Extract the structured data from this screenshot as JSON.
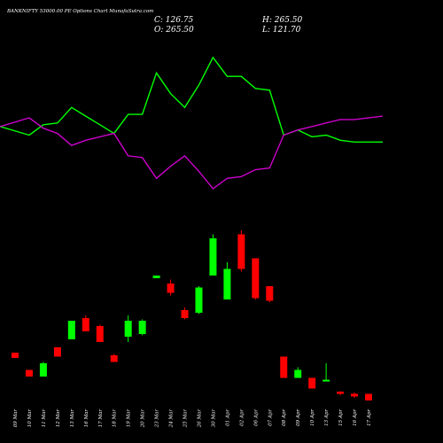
{
  "header": {
    "title": "BANKNIFTY 53000.00 PE Options Chart MunafaSutra.com",
    "close": "C: 126.75",
    "open": "O: 265.50",
    "high": "H: 265.50",
    "low": "L: 121.70"
  },
  "colors": {
    "background": "#000000",
    "up_candle": "#00ff00",
    "down_candle": "#ff0000",
    "green_line": "#00ff00",
    "magenta_line": "#cc00cc",
    "text": "#ffffff"
  },
  "chart_data": {
    "type": "candlestick",
    "dates": [
      "09 Mar",
      "10 Mar",
      "11 Mar",
      "12 Mar",
      "13 Mar",
      "16 Mar",
      "17 Mar",
      "18 Mar",
      "19 Mar",
      "20 Mar",
      "23 Mar",
      "24 Mar",
      "25 Mar",
      "26 Mar",
      "30 Mar",
      "01 Apr",
      "02 Apr",
      "06 Apr",
      "07 Apr",
      "08 Apr",
      "09 Apr",
      "10 Apr",
      "13 Apr",
      "15 Apr",
      "16 Apr",
      "17 Apr"
    ],
    "candles": [
      {
        "open": 2540,
        "high": 2540,
        "low": 2520,
        "close": 2520
      },
      {
        "open": 2475,
        "high": 2475,
        "low": 2450,
        "close": 2450
      },
      {
        "open": 2450,
        "high": 2505,
        "low": 2450,
        "close": 2500
      },
      {
        "open": 2560,
        "high": 2560,
        "low": 2525,
        "close": 2525
      },
      {
        "open": 2590,
        "high": 2660,
        "low": 2590,
        "close": 2660
      },
      {
        "open": 2670,
        "high": 2680,
        "low": 2620,
        "close": 2620
      },
      {
        "open": 2640,
        "high": 2645,
        "low": 2580,
        "close": 2580
      },
      {
        "open": 2530,
        "high": 2535,
        "low": 2505,
        "close": 2505
      },
      {
        "open": 2600,
        "high": 2680,
        "low": 2580,
        "close": 2660
      },
      {
        "open": 2610,
        "high": 2665,
        "low": 2605,
        "close": 2660
      },
      {
        "open": 2820,
        "high": 2830,
        "low": 2820,
        "close": 2830
      },
      {
        "open": 2800,
        "high": 2815,
        "low": 2755,
        "close": 2765
      },
      {
        "open": 2700,
        "high": 2710,
        "low": 2665,
        "close": 2670
      },
      {
        "open": 2690,
        "high": 2790,
        "low": 2685,
        "close": 2785
      },
      {
        "open": 2830,
        "high": 2985,
        "low": 2830,
        "close": 2970
      },
      {
        "open": 2740,
        "high": 2880,
        "low": 2740,
        "close": 2855
      },
      {
        "open": 2985,
        "high": 3000,
        "low": 2845,
        "close": 2855
      },
      {
        "open": 2895,
        "high": 2895,
        "low": 2740,
        "close": 2745
      },
      {
        "open": 2790,
        "high": 2790,
        "low": 2730,
        "close": 2735
      },
      {
        "open": 2525,
        "high": 2525,
        "low": 2445,
        "close": 2445
      },
      {
        "open": 2445,
        "high": 2485,
        "low": 2445,
        "close": 2475
      },
      {
        "open": 2445,
        "high": 2445,
        "low": 2405,
        "close": 2405
      },
      {
        "open": 2435,
        "high": 2500,
        "low": 2435,
        "close": 2438
      },
      {
        "open": 2393,
        "high": 2395,
        "low": 2380,
        "close": 2385
      },
      {
        "open": 2385,
        "high": 2390,
        "low": 2370,
        "close": 2375
      },
      {
        "open": 2385,
        "high": 2385,
        "low": 2360,
        "close": 2360
      }
    ],
    "series": [
      {
        "color": "#00ff00",
        "values": [
          55,
          50,
          56,
          57,
          66,
          61,
          56,
          51,
          62,
          62,
          86,
          74,
          66,
          79,
          95,
          84,
          84,
          77,
          76,
          50,
          53,
          49,
          50,
          47,
          46,
          46
        ]
      },
      {
        "color": "#cc00cc",
        "values": [
          55,
          60,
          54,
          51,
          44,
          47,
          49,
          51,
          38,
          37,
          25,
          32,
          38,
          29,
          19,
          25,
          26,
          30,
          31,
          50,
          53,
          55,
          57,
          59,
          59,
          61
        ]
      }
    ],
    "indicator_range": [
      0,
      100
    ]
  }
}
